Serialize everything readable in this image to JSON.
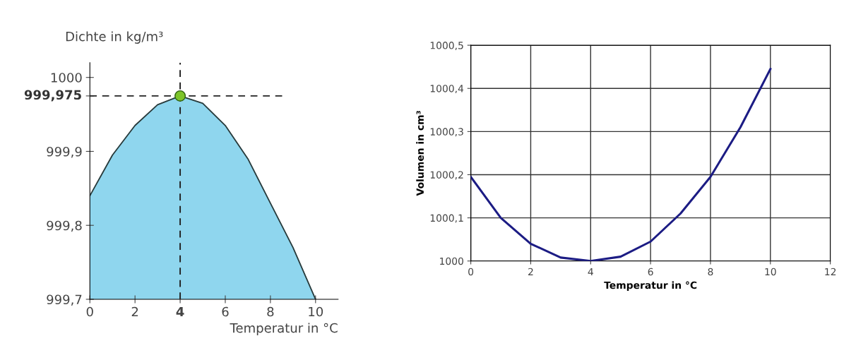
{
  "chart_data": [
    {
      "type": "area",
      "xlabel": "Temperatur in °C",
      "ylabel": "Dichte in kg/m³",
      "x": [
        0,
        1,
        2,
        3,
        4,
        5,
        6,
        7,
        8,
        9,
        10
      ],
      "series": [
        {
          "color": "#8fd6ee",
          "values": [
            999.84,
            999.895,
            999.935,
            999.963,
            999.975,
            999.965,
            999.935,
            999.89,
            999.83,
            999.77,
            999.7
          ]
        },
        {
          "type": "scatter",
          "color": "#7cc42a",
          "x": [
            4
          ],
          "values": [
            999.975
          ]
        }
      ],
      "xlim": [
        0,
        11
      ],
      "ylim": [
        999.7,
        1000.02
      ],
      "xticks": [
        0,
        2,
        4,
        6,
        8,
        10
      ],
      "yticks": [
        {
          "value": 999.7,
          "label": "999,7"
        },
        {
          "value": 999.8,
          "label": "999,8"
        },
        {
          "value": 999.9,
          "label": "999,9"
        },
        {
          "value": 999.975,
          "label": null
        },
        {
          "value": 1000,
          "label": "1000"
        }
      ],
      "ref_lines": [
        {
          "axis": "x",
          "value": 4,
          "color": "#222222",
          "line_style": "dashed"
        },
        {
          "axis": "y",
          "value": 999.975,
          "label": "999,975",
          "color": "#222222",
          "line_style": "dashed"
        }
      ],
      "grid": false
    },
    {
      "type": "line",
      "xlabel": "Temperatur in °C",
      "ylabel": "Volumen in cm³",
      "x": [
        0,
        1,
        2,
        3,
        4,
        5,
        6,
        7,
        8,
        9,
        10
      ],
      "series": [
        {
          "color": "#1c1c84",
          "values": [
            1000.195,
            1000.1,
            1000.04,
            1000.008,
            1000.0,
            1000.01,
            1000.045,
            1000.11,
            1000.195,
            1000.31,
            1000.445
          ]
        }
      ],
      "xlim": [
        0,
        12
      ],
      "ylim": [
        1000,
        1000.5
      ],
      "xticks": [
        0,
        2,
        4,
        6,
        8,
        10,
        12
      ],
      "yticks": [
        {
          "value": 1000,
          "label": "1000"
        },
        {
          "value": 1000.1,
          "label": "1000,1"
        },
        {
          "value": 1000.2,
          "label": "1000,2"
        },
        {
          "value": 1000.3,
          "label": "1000,3"
        },
        {
          "value": 1000.4,
          "label": "1000,4"
        },
        {
          "value": 1000.5,
          "label": "1000,5"
        }
      ],
      "grid": true
    }
  ]
}
